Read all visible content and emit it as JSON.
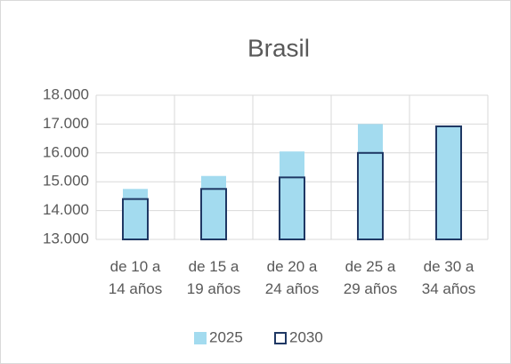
{
  "chart_data": {
    "type": "bar",
    "title": "Brasil",
    "categories": [
      "de 10 a 14 años",
      "de 15 a 19 años",
      "de 20 a 24 años",
      "de 25 a 29 años",
      "de 30 a 34 años"
    ],
    "series": [
      {
        "name": "2025",
        "color": "#a3dbef",
        "style": "fill",
        "values": [
          14750,
          15200,
          16050,
          17000,
          16900
        ]
      },
      {
        "name": "2030",
        "color": "#1f3864",
        "style": "outline",
        "values": [
          14400,
          14750,
          15150,
          16000,
          16920
        ]
      }
    ],
    "ylim": [
      13000,
      18000
    ],
    "yticks": [
      {
        "value": 13000,
        "label": "13.000"
      },
      {
        "value": 14000,
        "label": "14.000"
      },
      {
        "value": 15000,
        "label": "15.000"
      },
      {
        "value": 16000,
        "label": "16.000"
      },
      {
        "value": 17000,
        "label": "17.000"
      },
      {
        "value": 18000,
        "label": "18.000"
      }
    ],
    "grid": true,
    "legend": "bottom"
  }
}
